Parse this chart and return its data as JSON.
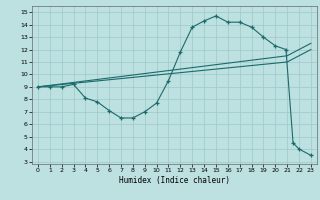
{
  "xlabel": "Humidex (Indice chaleur)",
  "bg_color": "#bde0e0",
  "line_color": "#1a6b6b",
  "xlim": [
    -0.5,
    23.5
  ],
  "ylim": [
    2.8,
    15.5
  ],
  "xticks": [
    0,
    1,
    2,
    3,
    4,
    5,
    6,
    7,
    8,
    9,
    10,
    11,
    12,
    13,
    14,
    15,
    16,
    17,
    18,
    19,
    20,
    21,
    22,
    23
  ],
  "yticks": [
    3,
    4,
    5,
    6,
    7,
    8,
    9,
    10,
    11,
    12,
    13,
    14,
    15
  ],
  "curve_x": [
    0,
    1,
    2,
    3,
    4,
    5,
    6,
    7,
    8,
    9,
    10,
    11,
    12,
    13,
    14,
    15,
    16,
    17,
    18,
    19,
    20,
    20.9,
    21.5,
    22,
    23
  ],
  "curve_y": [
    9,
    9,
    9,
    9.2,
    8.1,
    7.8,
    7.1,
    6.5,
    6.5,
    7.0,
    7.7,
    9.5,
    11.8,
    13.8,
    14.3,
    14.7,
    14.2,
    14.2,
    13.8,
    13.0,
    12.3,
    12.0,
    4.5,
    4.0,
    3.5
  ],
  "line2_x": [
    0,
    21,
    22,
    23
  ],
  "line2_y": [
    9,
    11.0,
    11.5,
    12.0
  ],
  "line3_x": [
    0,
    21,
    22,
    23
  ],
  "line3_y": [
    9,
    11.5,
    12.0,
    12.5
  ],
  "grid_color": "#9ec8c8"
}
